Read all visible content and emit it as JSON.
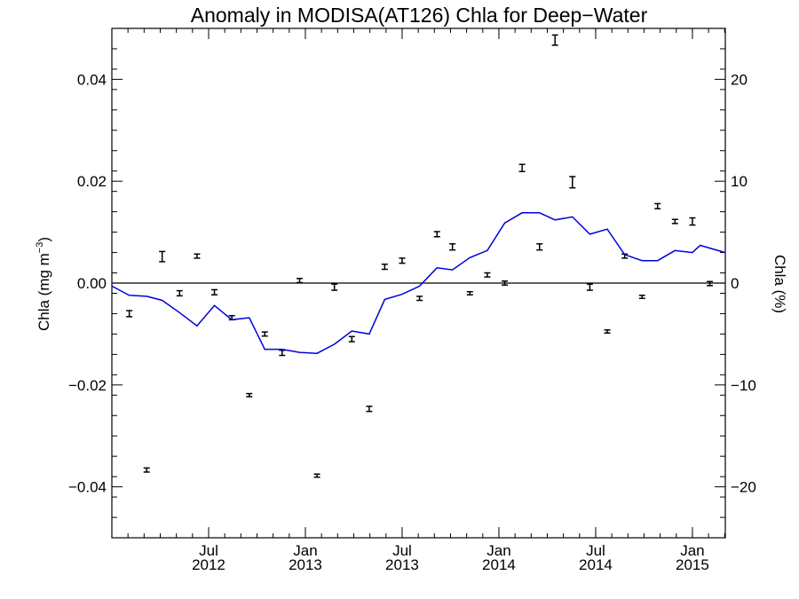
{
  "chart_data": {
    "type": "scatter",
    "title": "Anomaly in MODISA(AT126) Chla for Deep−Water",
    "ylabel_left": {
      "base": "Chla (mg m",
      "exp": "−3",
      "close": ")"
    },
    "ylabel_right": "Chla (%)",
    "xlim": [
      2012.0,
      2015.17
    ],
    "ylim_left": [
      -0.05,
      0.05
    ],
    "ylim_right": [
      -25,
      25
    ],
    "grid": false,
    "x_ticks": [
      {
        "x": 2012.5,
        "month": "Jul",
        "year": "2012"
      },
      {
        "x": 2013.0,
        "month": "Jan",
        "year": "2013"
      },
      {
        "x": 2013.5,
        "month": "Jul",
        "year": "2013"
      },
      {
        "x": 2014.0,
        "month": "Jan",
        "year": "2014"
      },
      {
        "x": 2014.5,
        "month": "Jul",
        "year": "2014"
      },
      {
        "x": 2015.0,
        "month": "Jan",
        "year": "2015"
      }
    ],
    "y_ticks_left": [
      {
        "v": 0.04,
        "label": "0.04"
      },
      {
        "v": 0.02,
        "label": "0.02"
      },
      {
        "v": 0.0,
        "label": "0.00"
      },
      {
        "v": -0.02,
        "label": "−0.02"
      },
      {
        "v": -0.04,
        "label": "−0.04"
      }
    ],
    "y_ticks_right": [
      {
        "v": 20,
        "label": "20"
      },
      {
        "v": 10,
        "label": "10"
      },
      {
        "v": 0,
        "label": "0"
      },
      {
        "v": -10,
        "label": "−10"
      },
      {
        "v": -20,
        "label": "−20"
      }
    ],
    "zero_line": 0.0,
    "series": [
      {
        "kind": "errorbar",
        "axis": "left",
        "color": "#000000",
        "points": [
          {
            "x": 2012.09,
            "y": -0.006,
            "err": 0.0006
          },
          {
            "x": 2012.18,
            "y": -0.0367,
            "err": 0.0004
          },
          {
            "x": 2012.26,
            "y": 0.0052,
            "err": 0.001
          },
          {
            "x": 2012.35,
            "y": -0.002,
            "err": 0.0005
          },
          {
            "x": 2012.44,
            "y": 0.0053,
            "err": 0.0004
          },
          {
            "x": 2012.53,
            "y": -0.0018,
            "err": 0.0005
          },
          {
            "x": 2012.62,
            "y": -0.0068,
            "err": 0.0004
          },
          {
            "x": 2012.71,
            "y": -0.022,
            "err": 0.0003
          },
          {
            "x": 2012.79,
            "y": -0.01,
            "err": 0.0004
          },
          {
            "x": 2012.88,
            "y": -0.0137,
            "err": 0.0005
          },
          {
            "x": 2012.97,
            "y": 0.0005,
            "err": 0.0004
          },
          {
            "x": 2013.06,
            "y": -0.0378,
            "err": 0.0003
          },
          {
            "x": 2013.15,
            "y": -0.0008,
            "err": 0.0006
          },
          {
            "x": 2013.24,
            "y": -0.011,
            "err": 0.0005
          },
          {
            "x": 2013.33,
            "y": -0.0247,
            "err": 0.0005
          },
          {
            "x": 2013.41,
            "y": 0.0032,
            "err": 0.0005
          },
          {
            "x": 2013.5,
            "y": 0.0044,
            "err": 0.0005
          },
          {
            "x": 2013.59,
            "y": -0.003,
            "err": 0.0004
          },
          {
            "x": 2013.68,
            "y": 0.0096,
            "err": 0.0005
          },
          {
            "x": 2013.76,
            "y": 0.0071,
            "err": 0.0006
          },
          {
            "x": 2013.85,
            "y": -0.002,
            "err": 0.0003
          },
          {
            "x": 2013.94,
            "y": 0.0016,
            "err": 0.0004
          },
          {
            "x": 2014.03,
            "y": 0.0,
            "err": 0.0004
          },
          {
            "x": 2014.12,
            "y": 0.0226,
            "err": 0.0007
          },
          {
            "x": 2014.21,
            "y": 0.0071,
            "err": 0.0006
          },
          {
            "x": 2014.29,
            "y": 0.0477,
            "err": 0.001
          },
          {
            "x": 2014.38,
            "y": 0.0198,
            "err": 0.0011
          },
          {
            "x": 2014.47,
            "y": -0.0008,
            "err": 0.0006
          },
          {
            "x": 2014.56,
            "y": -0.0095,
            "err": 0.0003
          },
          {
            "x": 2014.65,
            "y": 0.0053,
            "err": 0.0004
          },
          {
            "x": 2014.74,
            "y": -0.0027,
            "err": 0.0003
          },
          {
            "x": 2014.82,
            "y": 0.0151,
            "err": 0.0005
          },
          {
            "x": 2014.91,
            "y": 0.0121,
            "err": 0.0004
          },
          {
            "x": 2015.0,
            "y": 0.0121,
            "err": 0.0007
          },
          {
            "x": 2015.09,
            "y": -0.0001,
            "err": 0.0004
          }
        ]
      },
      {
        "kind": "line",
        "axis": "right",
        "color": "#0000dd",
        "x": [
          2012.0,
          2012.09,
          2012.18,
          2012.26,
          2012.35,
          2012.44,
          2012.53,
          2012.62,
          2012.71,
          2012.79,
          2012.88,
          2012.97,
          2013.06,
          2013.15,
          2013.24,
          2013.33,
          2013.41,
          2013.5,
          2013.59,
          2013.68,
          2013.76,
          2013.85,
          2013.94,
          2014.03,
          2014.12,
          2014.21,
          2014.29,
          2014.38,
          2014.47,
          2014.56,
          2014.65,
          2014.74,
          2014.82,
          2014.91,
          2015.0,
          2015.04,
          2015.17
        ],
        "y": [
          -0.3,
          -1.2,
          -1.3,
          -1.7,
          -2.9,
          -4.2,
          -2.2,
          -3.6,
          -3.4,
          -6.5,
          -6.5,
          -6.8,
          -6.9,
          -6.0,
          -4.7,
          -5.0,
          -1.6,
          -1.1,
          -0.3,
          1.5,
          1.3,
          2.5,
          3.2,
          5.9,
          6.9,
          6.9,
          6.2,
          6.5,
          4.8,
          5.3,
          2.8,
          2.2,
          2.2,
          3.2,
          3.0,
          3.7,
          3.0
        ]
      }
    ]
  }
}
